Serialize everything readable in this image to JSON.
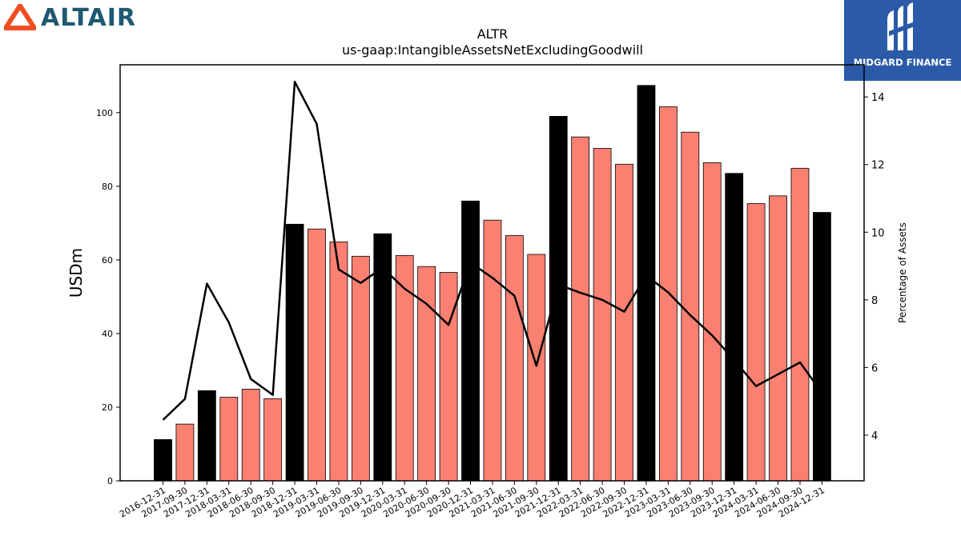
{
  "branding": {
    "left_logo_text": "ALTAIR",
    "left_logo_color": "#1e5872",
    "left_logo_mark_color": "#f04e23",
    "right_logo_text": "MIDGARD FINANCE",
    "right_logo_bg": "#2a5aa8"
  },
  "chart_data": {
    "type": "bar",
    "title": "ALTR",
    "subtitle": "us-gaap:IntangibleAssetsNetExcludingGoodwill",
    "ylabel": "USDm",
    "y2label": "Percentage of Assets",
    "ylim": [
      0,
      113
    ],
    "y2lim": [
      2.65,
      14.95
    ],
    "yticks": [
      0,
      20,
      40,
      60,
      80,
      100
    ],
    "y2ticks": [
      4,
      6,
      8,
      10,
      12,
      14
    ],
    "grid": false,
    "colors": {
      "annual": "#000000",
      "quarterly": "#fa8072",
      "line": "#000000"
    },
    "categories": [
      "2016-12-31",
      "2017-09-30",
      "2017-12-31",
      "2018-03-31",
      "2018-06-30",
      "2018-09-30",
      "2018-12-31",
      "2019-03-31",
      "2019-06-30",
      "2019-09-30",
      "2019-12-31",
      "2020-03-31",
      "2020-06-30",
      "2020-09-30",
      "2020-12-31",
      "2021-03-31",
      "2021-06-30",
      "2021-09-30",
      "2021-12-31",
      "2022-03-31",
      "2022-06-30",
      "2022-09-30",
      "2022-12-31",
      "2023-03-31",
      "2023-06-30",
      "2023-09-30",
      "2023-12-31",
      "2024-03-31",
      "2024-06-30",
      "2024-09-30",
      "2024-12-31"
    ],
    "values": [
      11.2,
      15.4,
      24.5,
      22.7,
      24.9,
      22.3,
      69.7,
      68.4,
      64.9,
      61.0,
      67.1,
      61.2,
      58.2,
      56.6,
      76.0,
      70.8,
      66.6,
      61.5,
      99.0,
      93.4,
      90.3,
      86.0,
      107.4,
      101.6,
      94.7,
      86.4,
      83.5,
      75.3,
      77.4,
      84.9,
      72.9
    ],
    "bar_kind": [
      "annual",
      "quarterly",
      "annual",
      "quarterly",
      "quarterly",
      "quarterly",
      "annual",
      "quarterly",
      "quarterly",
      "quarterly",
      "annual",
      "quarterly",
      "quarterly",
      "quarterly",
      "annual",
      "quarterly",
      "quarterly",
      "quarterly",
      "annual",
      "quarterly",
      "quarterly",
      "quarterly",
      "annual",
      "quarterly",
      "quarterly",
      "quarterly",
      "annual",
      "quarterly",
      "quarterly",
      "quarterly",
      "annual"
    ],
    "pct_of_assets": [
      4.45,
      5.07,
      8.48,
      7.33,
      5.66,
      5.19,
      14.45,
      13.2,
      8.9,
      8.5,
      8.95,
      8.33,
      7.88,
      7.26,
      9.1,
      8.65,
      8.12,
      6.05,
      8.45,
      8.21,
      8.0,
      7.65,
      8.72,
      8.22,
      7.55,
      6.95,
      6.22,
      5.45,
      5.8,
      6.15,
      5.25
    ]
  }
}
